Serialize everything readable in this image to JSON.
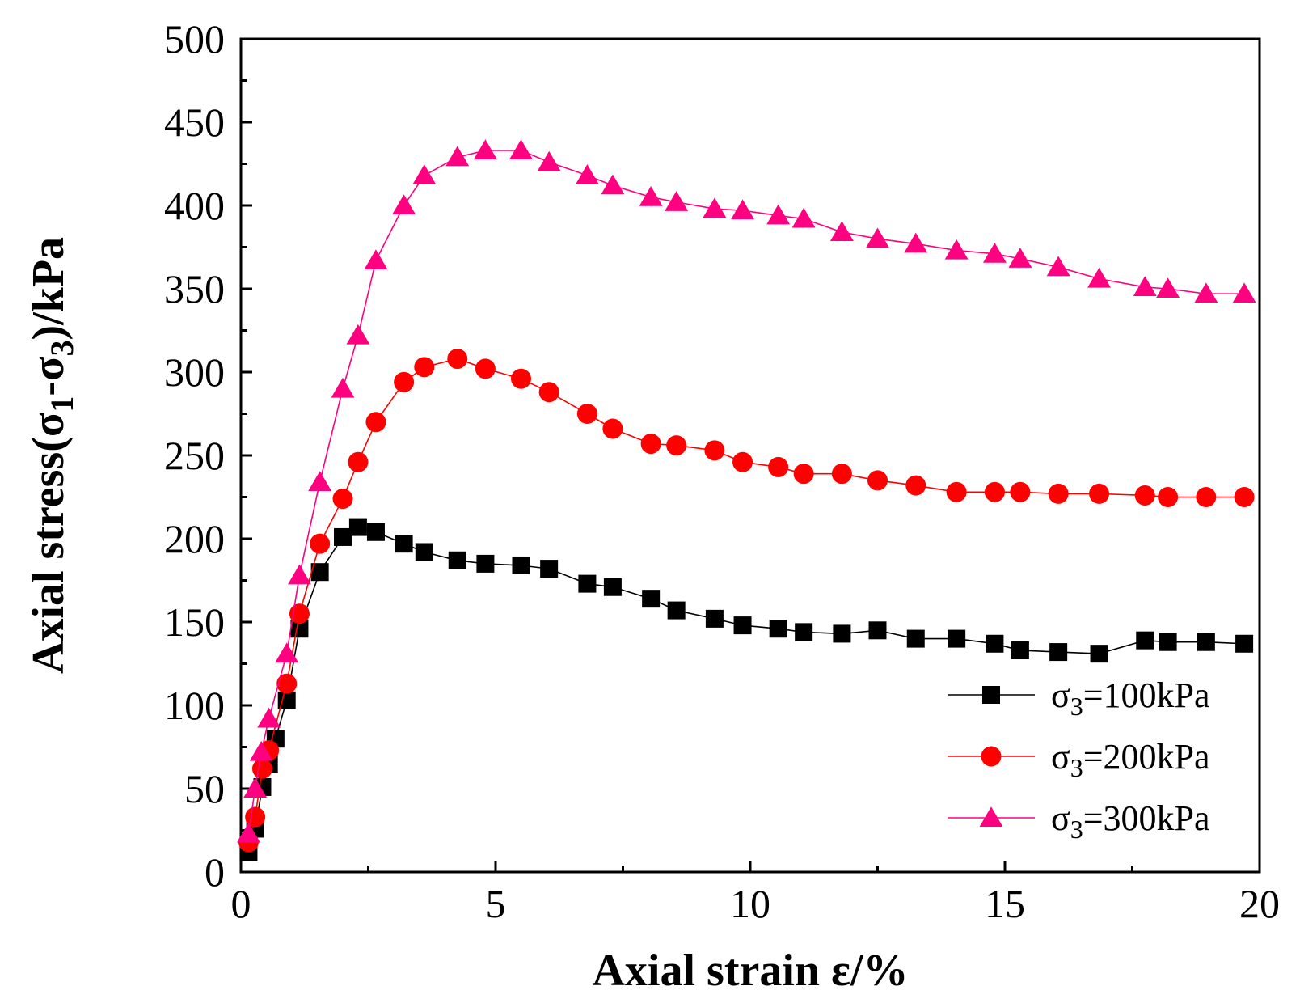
{
  "chart_data": {
    "type": "line",
    "xlabel": "Axial strain ε/%",
    "ylabel_parts": [
      "Axial stress(σ",
      "1",
      "-σ",
      "3",
      ")/kPa"
    ],
    "xlim": [
      0,
      20
    ],
    "ylim": [
      0,
      500
    ],
    "x_ticks": [
      0,
      5,
      10,
      15,
      20
    ],
    "y_ticks": [
      0,
      50,
      100,
      150,
      200,
      250,
      300,
      350,
      400,
      450,
      500
    ],
    "x_tick_labels": [
      "0",
      "5",
      "10",
      "15",
      "20"
    ],
    "y_tick_labels": [
      "0",
      "50",
      "100",
      "150",
      "200",
      "250",
      "300",
      "350",
      "400",
      "450",
      "500"
    ],
    "grid": false,
    "legend_position": "bottom-right",
    "series": [
      {
        "name": "σ3=100kPa",
        "legend_main": "σ",
        "legend_sub": "3",
        "legend_rest": "=100kPa",
        "color": "#000000",
        "marker": "square",
        "x": [
          0.15,
          0.28,
          0.42,
          0.55,
          0.68,
          0.9,
          1.15,
          1.55,
          2.0,
          2.3,
          2.65,
          3.2,
          3.6,
          4.25,
          4.8,
          5.5,
          6.05,
          6.8,
          7.3,
          8.05,
          8.55,
          9.3,
          9.85,
          10.55,
          11.05,
          11.8,
          12.5,
          13.25,
          14.05,
          14.8,
          15.3,
          16.05,
          16.85,
          17.75,
          18.2,
          18.95,
          19.7
        ],
        "y": [
          12,
          26,
          51,
          65,
          80,
          103,
          146,
          180,
          201,
          207,
          204,
          197,
          192,
          187,
          185,
          184,
          182,
          173,
          171,
          164,
          157,
          152,
          148,
          146,
          144,
          143,
          145,
          140,
          140,
          137,
          133,
          132,
          131,
          139,
          138,
          138,
          137
        ]
      },
      {
        "name": "σ3=200kPa",
        "legend_main": "σ",
        "legend_sub": "3",
        "legend_rest": "=200kPa",
        "color": "#ff0000",
        "marker": "circle",
        "x": [
          0.15,
          0.28,
          0.42,
          0.55,
          0.9,
          1.15,
          1.55,
          2.0,
          2.3,
          2.65,
          3.2,
          3.6,
          4.25,
          4.8,
          5.5,
          6.05,
          6.8,
          7.3,
          8.05,
          8.55,
          9.3,
          9.85,
          10.55,
          11.05,
          11.8,
          12.5,
          13.25,
          14.05,
          14.8,
          15.3,
          16.05,
          16.85,
          17.75,
          18.2,
          18.95,
          19.7
        ],
        "y": [
          18,
          33,
          62,
          73,
          113,
          155,
          197,
          224,
          246,
          270,
          294,
          303,
          308,
          302,
          296,
          288,
          275,
          266,
          257,
          256,
          253,
          246,
          243,
          239,
          239,
          235,
          232,
          228,
          228,
          228,
          227,
          227,
          226,
          225,
          225,
          225
        ]
      },
      {
        "name": "σ3=300kPa",
        "legend_main": "σ",
        "legend_sub": "3",
        "legend_rest": "=300kPa",
        "color": "#ff0080",
        "marker": "triangle",
        "x": [
          0.15,
          0.28,
          0.4,
          0.55,
          0.9,
          1.15,
          1.55,
          2.0,
          2.3,
          2.65,
          3.2,
          3.6,
          4.25,
          4.8,
          5.5,
          6.05,
          6.8,
          7.3,
          8.05,
          8.55,
          9.3,
          9.85,
          10.55,
          11.05,
          11.8,
          12.5,
          13.25,
          14.05,
          14.8,
          15.3,
          16.05,
          16.85,
          17.75,
          18.2,
          18.95,
          19.7
        ],
        "y": [
          23,
          50,
          72,
          92,
          131,
          178,
          234,
          290,
          322,
          367,
          400,
          418,
          429,
          433,
          433,
          426,
          418,
          412,
          405,
          402,
          398,
          397,
          394,
          392,
          384,
          380,
          377,
          373,
          371,
          368,
          363,
          356,
          351,
          350,
          347,
          347
        ]
      }
    ]
  }
}
